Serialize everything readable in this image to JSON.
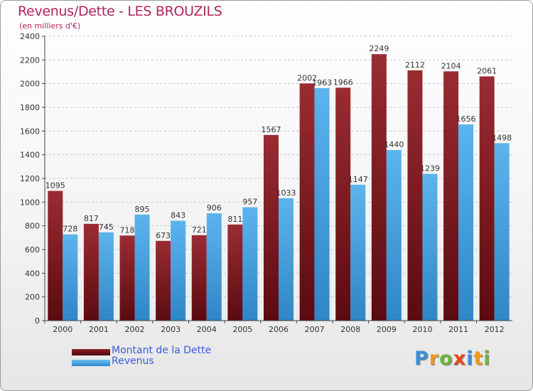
{
  "chart_data": {
    "type": "bar",
    "title": "Revenus/Dette - LES BROUZILS",
    "subtitle": "(en milliers d'€)",
    "categories": [
      "2000",
      "2001",
      "2002",
      "2003",
      "2004",
      "2005",
      "2006",
      "2007",
      "2008",
      "2009",
      "2010",
      "2011",
      "2012"
    ],
    "series": [
      {
        "name": "Montant de la Dette",
        "color": "#7a1a1e",
        "values": [
          1095,
          817,
          718,
          673,
          721,
          811,
          1567,
          2002,
          1966,
          2249,
          2112,
          2104,
          2061
        ]
      },
      {
        "name": "Revenus",
        "color": "#4fa8e6",
        "values": [
          728,
          745,
          895,
          843,
          906,
          957,
          1033,
          1963,
          1147,
          1440,
          1239,
          1656,
          1498
        ]
      }
    ],
    "ylim": [
      0,
      2400
    ],
    "yticks": [
      0,
      200,
      400,
      600,
      800,
      1000,
      1200,
      1400,
      1600,
      1800,
      2000,
      2200,
      2400
    ],
    "grid": true,
    "legend": "bottom-left"
  },
  "branding": {
    "logo_letters": [
      "P",
      "r",
      "o",
      "x",
      "i",
      "t",
      "i"
    ],
    "logo_colors": [
      "#3c8fd8",
      "#f29a1d",
      "#6cb33f",
      "#e8461e",
      "#3c8fd8",
      "#f29a1d",
      "#6cb33f"
    ]
  }
}
